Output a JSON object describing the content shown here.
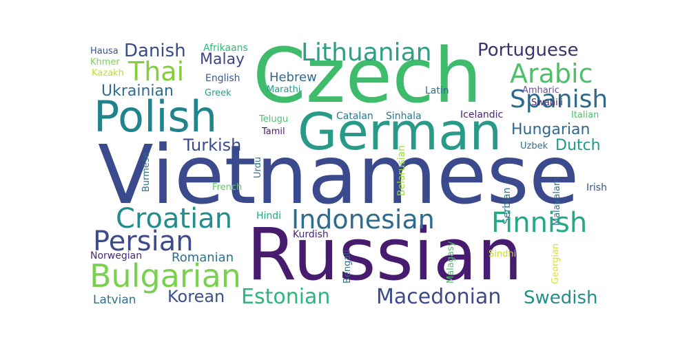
{
  "words": [
    {
      "text": "Vietnamese",
      "color": "#3b4a8c"
    },
    {
      "text": "Russian",
      "color": "#471c6f"
    },
    {
      "text": "Czech",
      "color": "#3fbb6c"
    },
    {
      "text": "German",
      "color": "#2a9a88"
    },
    {
      "text": "Polish",
      "color": "#21848d"
    },
    {
      "text": "Lithuanian",
      "color": "#2e9e86"
    },
    {
      "text": "Portuguese",
      "color": "#3f306f"
    },
    {
      "text": "Arabic",
      "color": "#4fbf69"
    },
    {
      "text": "Spanish",
      "color": "#2d6a8e"
    },
    {
      "text": "Danish",
      "color": "#3a4b89"
    },
    {
      "text": "Thai",
      "color": "#84cd3e"
    },
    {
      "text": "Malay",
      "color": "#414487"
    },
    {
      "text": "Afrikaans",
      "color": "#35b779"
    },
    {
      "text": "Hausa",
      "color": "#3b528b"
    },
    {
      "text": "Khmer",
      "color": "#7ad151"
    },
    {
      "text": "Kazakh",
      "color": "#c2df23"
    },
    {
      "text": "English",
      "color": "#38588c"
    },
    {
      "text": "Greek",
      "color": "#2b9c87"
    },
    {
      "text": "Hebrew",
      "color": "#31688e"
    },
    {
      "text": "Marathi",
      "color": "#1f9f88"
    },
    {
      "text": "Ukrainian",
      "color": "#2f6b8e"
    },
    {
      "text": "Latin",
      "color": "#2d708e"
    },
    {
      "text": "Amharic",
      "color": "#6b4f9a"
    },
    {
      "text": "Hungarian",
      "color": "#31668e"
    },
    {
      "text": "Italian",
      "color": "#4fc16a"
    },
    {
      "text": "Swahili",
      "color": "#482475"
    },
    {
      "text": "Icelandic",
      "color": "#482475"
    },
    {
      "text": "Catalan",
      "color": "#2b798e"
    },
    {
      "text": "Sinhala",
      "color": "#2a788e"
    },
    {
      "text": "Telugu",
      "color": "#4ac16d"
    },
    {
      "text": "Tamil",
      "color": "#4b1a6e"
    },
    {
      "text": "Turkish",
      "color": "#3a4a89"
    },
    {
      "text": "Dutch",
      "color": "#1f9a8a"
    },
    {
      "text": "Urdu",
      "color": "#2c738e"
    },
    {
      "text": "Uzbek",
      "color": "#2c728e"
    },
    {
      "text": "Burmese",
      "color": "#2c738e"
    },
    {
      "text": "French",
      "color": "#5ec962"
    },
    {
      "text": "Belarusian",
      "color": "#9bd93c"
    },
    {
      "text": "Serbian",
      "color": "#2b758e"
    },
    {
      "text": "Malayalam",
      "color": "#2c6f8e"
    },
    {
      "text": "Irish",
      "color": "#3c4f8a"
    },
    {
      "text": "Croatian",
      "color": "#218d8c"
    },
    {
      "text": "Indonesian",
      "color": "#2e6b8e"
    },
    {
      "text": "Finnish",
      "color": "#25a884"
    },
    {
      "text": "Hindi",
      "color": "#25a584"
    },
    {
      "text": "Persian",
      "color": "#3e4b8a"
    },
    {
      "text": "Kurdish",
      "color": "#482677"
    },
    {
      "text": "Bengali",
      "color": "#2f6c8e"
    },
    {
      "text": "Malagasy",
      "color": "#4fc16a"
    },
    {
      "text": "Sindhi",
      "color": "#c8e020"
    },
    {
      "text": "Georgian",
      "color": "#dde318"
    },
    {
      "text": "Norwegian",
      "color": "#482677"
    },
    {
      "text": "Romanian",
      "color": "#2e6e8e"
    },
    {
      "text": "Bulgarian",
      "color": "#7ad151"
    },
    {
      "text": "Latvian",
      "color": "#2d708e"
    },
    {
      "text": "Korean",
      "color": "#3b518b"
    },
    {
      "text": "Estonian",
      "color": "#2fb47c"
    },
    {
      "text": "Macedonian",
      "color": "#3e4a89"
    },
    {
      "text": "Swedish",
      "color": "#208f8c"
    }
  ]
}
